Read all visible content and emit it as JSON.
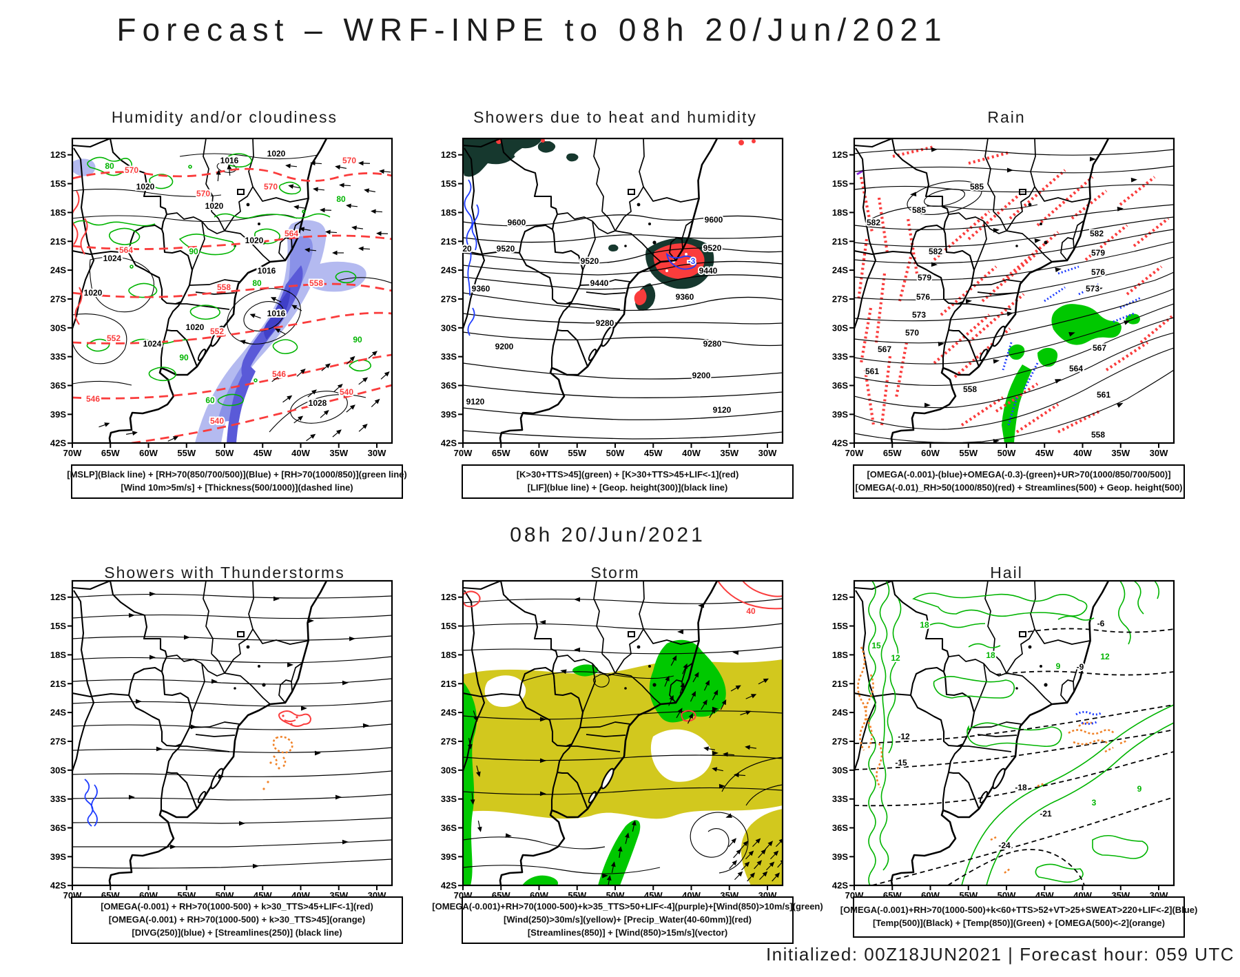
{
  "title": "Forecast – WRF-INPE to 08h 20/Jun/2021",
  "subtitle": "08h 20/Jun/2021",
  "footer": "Initialized: 00Z18JUN2021 | Forecast hour: 059 UTC",
  "axes": {
    "lat": [
      "12S",
      "15S",
      "18S",
      "21S",
      "24S",
      "27S",
      "30S",
      "33S",
      "36S",
      "39S",
      "42S"
    ],
    "lon": [
      "70W",
      "65W",
      "60W",
      "55W",
      "50W",
      "45W",
      "40W",
      "35W",
      "30W"
    ]
  },
  "colors": {
    "k": "#000000",
    "r": "#fa3c3c",
    "g": "#00b400",
    "b": "#1e3cff",
    "o": "#f08228",
    "yellow": "#d2c81e",
    "teal": "#16382e",
    "shade_light": "#b4baf0",
    "shade_mid": "#8a92e8",
    "shade_dark": "#5a5ad8"
  },
  "map_info": {
    "region": "South America (Brazil / Southern Cone)",
    "lat_range": [
      "12S",
      "42S"
    ],
    "lon_range": [
      "70W",
      "30W"
    ]
  },
  "panels": [
    {
      "id": "humidity",
      "title": "Humidity and/or cloudiness",
      "legend": [
        "[MSLP](Black line) + [RH>70(850/700/500)](Blue) + [RH>70(1000/850)](green line)",
        "[Wind 10m>5m/s] + [Thickness(500/1000)](dashed line)"
      ],
      "labels": [
        [
          "1016",
          262,
          40,
          "k"
        ],
        [
          "1020",
          330,
          30,
          "k"
        ],
        [
          "1020",
          140,
          78,
          "k"
        ],
        [
          "1020",
          240,
          106,
          "k"
        ],
        [
          "1020",
          298,
          156,
          "k"
        ],
        [
          "1016",
          316,
          200,
          "k"
        ],
        [
          "1024",
          92,
          182,
          "k"
        ],
        [
          "1020",
          64,
          232,
          "k"
        ],
        [
          "1024",
          150,
          306,
          "k"
        ],
        [
          "1020",
          212,
          282,
          "k"
        ],
        [
          "1016",
          330,
          262,
          "k"
        ],
        [
          "1028",
          390,
          392,
          "k"
        ],
        [
          "570",
          120,
          54,
          "r"
        ],
        [
          "570",
          224,
          88,
          "r"
        ],
        [
          "570",
          322,
          78,
          "r"
        ],
        [
          "570",
          436,
          40,
          "r"
        ],
        [
          "564",
          112,
          170,
          "r"
        ],
        [
          "564",
          352,
          146,
          "r"
        ],
        [
          "558",
          254,
          224,
          "r"
        ],
        [
          "558",
          388,
          218,
          "r"
        ],
        [
          "552",
          94,
          298,
          "r"
        ],
        [
          "552",
          244,
          288,
          "r"
        ],
        [
          "546",
          64,
          386,
          "r"
        ],
        [
          "546",
          334,
          350,
          "r"
        ],
        [
          "540",
          244,
          418,
          "r"
        ],
        [
          "540",
          432,
          376,
          "r"
        ],
        [
          "80",
          88,
          48,
          "g"
        ],
        [
          "90",
          210,
          172,
          "g"
        ],
        [
          "80",
          302,
          218,
          "g"
        ],
        [
          "90",
          196,
          326,
          "g"
        ],
        [
          "60",
          234,
          388,
          "g"
        ],
        [
          "80",
          424,
          96,
          "g"
        ],
        [
          "90",
          448,
          300,
          "g"
        ]
      ]
    },
    {
      "id": "showers_heat",
      "title": "Showers due to heat and humidity",
      "legend": [
        "[K>30+TTS>45](green) + [K>30+TTS>45+LIF<-1](red)",
        "[LIF](blue line) + [Geop. height(300)](black line)"
      ],
      "labels": [
        [
          "9600",
          112,
          130,
          "k"
        ],
        [
          "9600",
          398,
          126,
          "k"
        ],
        [
          "9520",
          96,
          168,
          "k"
        ],
        [
          "9520",
          218,
          186,
          "k"
        ],
        [
          "9520",
          396,
          167,
          "k"
        ],
        [
          "9440",
          232,
          218,
          "k"
        ],
        [
          "9440",
          390,
          200,
          "k"
        ],
        [
          "9360",
          60,
          226,
          "k"
        ],
        [
          "9360",
          356,
          238,
          "k"
        ],
        [
          "9280",
          240,
          276,
          "k"
        ],
        [
          "9280",
          396,
          306,
          "k"
        ],
        [
          "9200",
          94,
          310,
          "k"
        ],
        [
          "9200",
          380,
          352,
          "k"
        ],
        [
          "9120",
          52,
          390,
          "k"
        ],
        [
          "9120",
          410,
          402,
          "k"
        ],
        [
          "20",
          40,
          168,
          "k"
        ],
        [
          "-3",
          366,
          186,
          "b"
        ]
      ]
    },
    {
      "id": "rain",
      "title": "Rain",
      "legend": [
        "[OMEGA(-0.001)-(blue)+OMEGA(-0.3)-(green)+UR>70(1000/850/700/500)]",
        "[OMEGA(-0.01)_RH>50(1000/850)(red) + Streamlines(500) + Geop. height(500)"
      ],
      "labels": [
        [
          "585",
          212,
          78,
          "k"
        ],
        [
          "585",
          128,
          112,
          "k"
        ],
        [
          "582",
          62,
          130,
          "k"
        ],
        [
          "582",
          152,
          172,
          "k"
        ],
        [
          "582",
          386,
          146,
          "k"
        ],
        [
          "579",
          136,
          210,
          "k"
        ],
        [
          "579",
          388,
          174,
          "k"
        ],
        [
          "576",
          134,
          238,
          "k"
        ],
        [
          "576",
          388,
          202,
          "k"
        ],
        [
          "573",
          128,
          264,
          "k"
        ],
        [
          "573",
          380,
          226,
          "k"
        ],
        [
          "570",
          118,
          290,
          "k"
        ],
        [
          "567",
          78,
          314,
          "k"
        ],
        [
          "567",
          390,
          312,
          "k"
        ],
        [
          "564",
          356,
          342,
          "k"
        ],
        [
          "561",
          60,
          346,
          "k"
        ],
        [
          "561",
          396,
          380,
          "k"
        ],
        [
          "558",
          202,
          372,
          "k"
        ],
        [
          "558",
          388,
          438,
          "k"
        ]
      ]
    },
    {
      "id": "thunder",
      "title": "Showers with Thunderstorms",
      "legend": [
        "[OMEGA(-0.001) + RH>70(1000-500) + k>30_TTS>45+LIF<-1](red)",
        "[OMEGA(-0.001) + RH>70(1000-500) + k>30_TTS>45](orange)",
        "[DIVG(250)](blue) + [Streamlines(250)] (black line)"
      ],
      "labels": []
    },
    {
      "id": "storm",
      "title": "Storm",
      "legend": [
        "[OMEGA(-0.001)+RH>70(1000-500)+k>35_TTS>50+LIF<-4](purple)+[Wind(850)>10m/s](green)",
        "[Wind(250)>30m/s](yellow)+ [Precip_Water(40-60mm)](red)",
        "[Streamlines(850)] + [Wind(850)>15m/s](vector)"
      ],
      "labels": [
        [
          "40",
          452,
          52,
          "r"
        ]
      ]
    },
    {
      "id": "hail",
      "title": "Hail",
      "legend": [
        "[OMEGA(-0.001)+RH>70(1000-500)+k<60+TTS>52+VT>25+SWEAT>220+LIF<-2](Blue)",
        "[Temp(500)](Black) + [Temp(850)](Green) + [OMEGA(500)<-2](orange)"
      ],
      "labels": [
        [
          "15",
          66,
          102,
          "g"
        ],
        [
          "12",
          94,
          120,
          "g"
        ],
        [
          "18",
          136,
          72,
          "g"
        ],
        [
          "18",
          232,
          116,
          "g"
        ],
        [
          "12",
          398,
          118,
          "g"
        ],
        [
          "9",
          330,
          132,
          "g"
        ],
        [
          "3",
          382,
          330,
          "g"
        ],
        [
          "9",
          448,
          310,
          "g"
        ],
        [
          "-6",
          392,
          70,
          "k"
        ],
        [
          "-9",
          362,
          133,
          "k"
        ],
        [
          "-12",
          106,
          234,
          "k"
        ],
        [
          "-15",
          102,
          272,
          "k"
        ],
        [
          "-18",
          276,
          308,
          "k"
        ],
        [
          "-21",
          312,
          346,
          "k"
        ],
        [
          "-24",
          252,
          392,
          "k"
        ]
      ]
    }
  ]
}
